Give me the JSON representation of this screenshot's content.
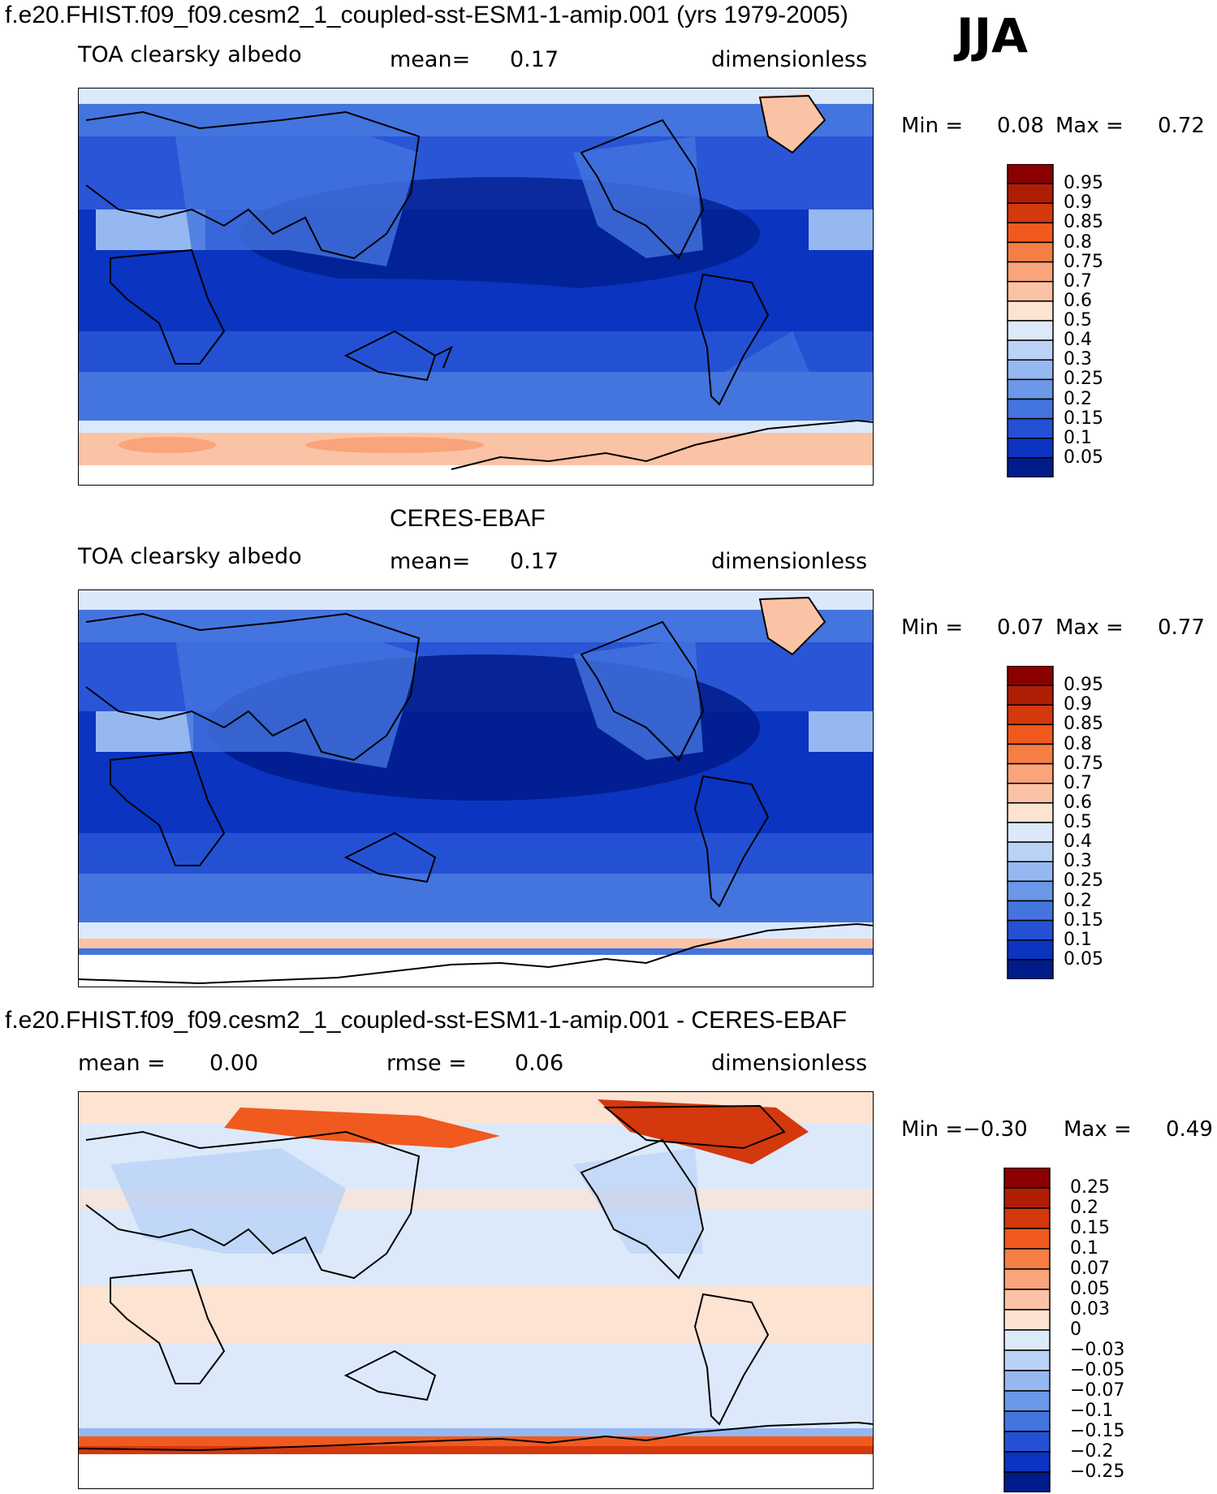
{
  "season": "JJA",
  "panels": [
    {
      "title": "f.e20.FHIST.f09_f09.cesm2_1_coupled-sst-ESM1-1-amip.001 (yrs 1979-2005)",
      "left_label": "TOA clearsky albedo",
      "mean_label": "mean=",
      "mean_value": "0.17",
      "units": "dimensionless",
      "min_label": "Min =",
      "min_value": "0.08",
      "max_label": "Max =",
      "max_value": "0.72"
    },
    {
      "title": "CERES-EBAF",
      "left_label": "TOA clearsky albedo",
      "mean_label": "mean=",
      "mean_value": "0.17",
      "units": "dimensionless",
      "min_label": "Min =",
      "min_value": "0.07",
      "max_label": "Max =",
      "max_value": "0.77"
    },
    {
      "title": "f.e20.FHIST.f09_f09.cesm2_1_coupled-sst-ESM1-1-amip.001 - CERES-EBAF",
      "left_label": "mean =",
      "mean_label": "rmse =",
      "mean_value": "0.00",
      "rmse_value": "0.06",
      "units": "dimensionless",
      "min_label": "Min =",
      "min_value": "−0.30",
      "max_label": "Max =",
      "max_value": "0.49"
    }
  ],
  "chart_data": [
    {
      "type": "heatmap",
      "title": "f.e20.FHIST.f09_f09.cesm2_1_coupled-sst-ESM1-1-amip.001 (yrs 1979-2005)",
      "variable": "TOA clearsky albedo",
      "units": "dimensionless",
      "mean": 0.17,
      "min": 0.08,
      "max": 0.72,
      "colorbar_levels": [
        "0.95",
        "0.9",
        "0.85",
        "0.8",
        "0.75",
        "0.7",
        "0.6",
        "0.5",
        "0.4",
        "0.3",
        "0.25",
        "0.2",
        "0.15",
        "0.1",
        "0.05"
      ],
      "colorbar_colors": [
        "#8b0000",
        "#b01d05",
        "#d4380d",
        "#f05a1e",
        "#f57e45",
        "#f9a47a",
        "#fbc3a5",
        "#fde3d2",
        "#dce9fb",
        "#bad2f6",
        "#95b8f0",
        "#6b98e8",
        "#4474de",
        "#2451d4",
        "#0b34c0",
        "#001c8a"
      ]
    },
    {
      "type": "heatmap",
      "title": "CERES-EBAF",
      "variable": "TOA clearsky albedo",
      "units": "dimensionless",
      "mean": 0.17,
      "min": 0.07,
      "max": 0.77,
      "colorbar_levels": [
        "0.95",
        "0.9",
        "0.85",
        "0.8",
        "0.75",
        "0.7",
        "0.6",
        "0.5",
        "0.4",
        "0.3",
        "0.25",
        "0.2",
        "0.15",
        "0.1",
        "0.05"
      ],
      "colorbar_colors": [
        "#8b0000",
        "#b01d05",
        "#d4380d",
        "#f05a1e",
        "#f57e45",
        "#f9a47a",
        "#fbc3a5",
        "#fde3d2",
        "#dce9fb",
        "#bad2f6",
        "#95b8f0",
        "#6b98e8",
        "#4474de",
        "#2451d4",
        "#0b34c0",
        "#001c8a"
      ]
    },
    {
      "type": "heatmap",
      "title": "f.e20.FHIST.f09_f09.cesm2_1_coupled-sst-ESM1-1-amip.001 - CERES-EBAF",
      "units": "dimensionless",
      "mean": 0.0,
      "rmse": 0.06,
      "min": -0.3,
      "max": 0.49,
      "colorbar_levels": [
        "0.25",
        "0.2",
        "0.15",
        "0.1",
        "0.07",
        "0.05",
        "0.03",
        "0",
        "−0.03",
        "−0.05",
        "−0.07",
        "−0.1",
        "−0.15",
        "−0.2",
        "−0.25"
      ],
      "colorbar_colors": [
        "#8b0000",
        "#b01d05",
        "#d4380d",
        "#f05a1e",
        "#f57e45",
        "#f9a47a",
        "#fbc3a5",
        "#fde3d2",
        "#dce9fb",
        "#bad2f6",
        "#95b8f0",
        "#6b98e8",
        "#4474de",
        "#2451d4",
        "#0b34c0",
        "#001c8a"
      ]
    }
  ]
}
